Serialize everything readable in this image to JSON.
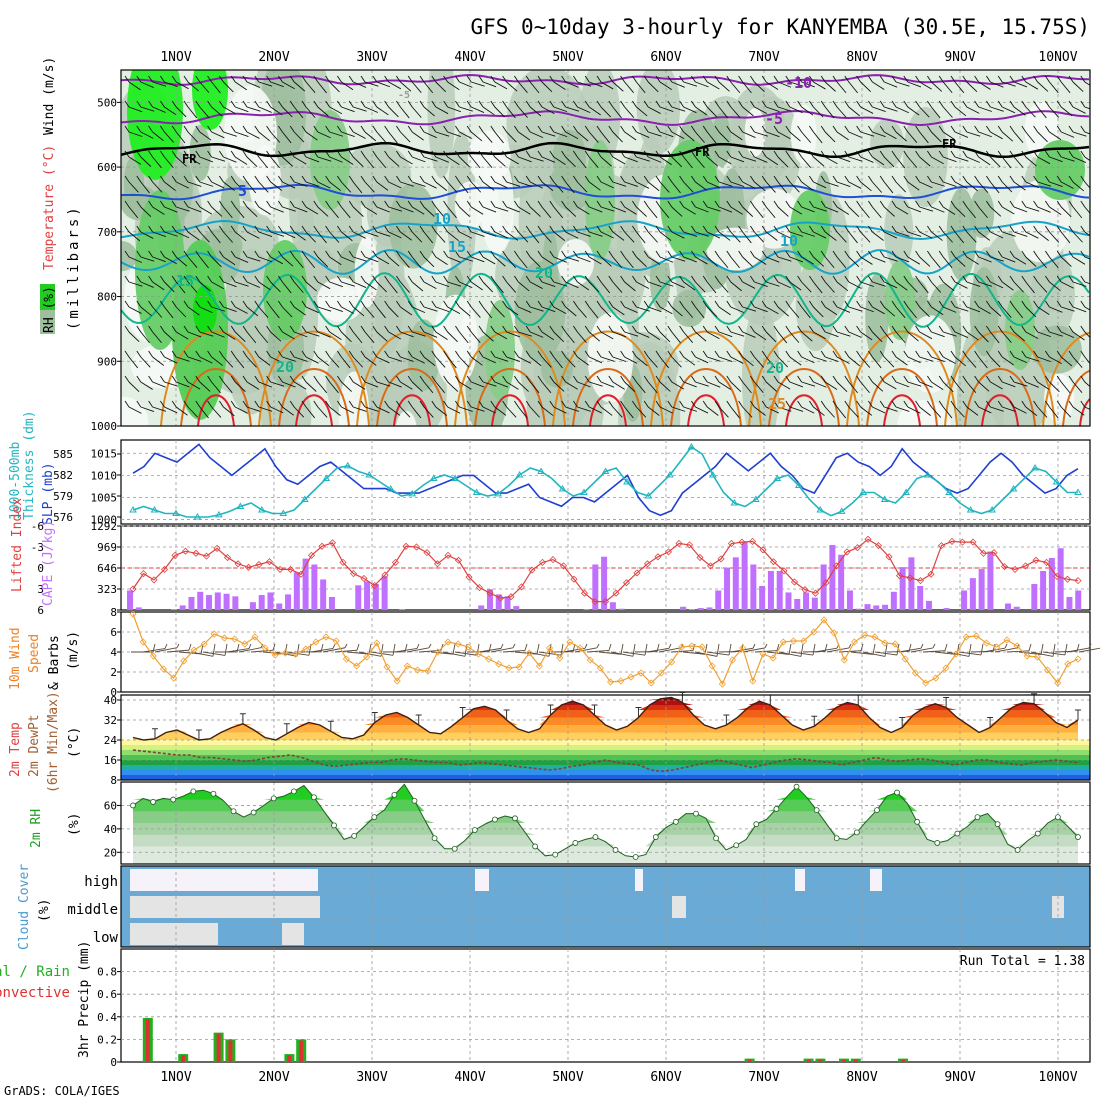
{
  "title": "GFS 0~10day 3-hourly for KANYEMBA (30.5E, 15.75S)",
  "credit": "GrADS: COLA/IGES",
  "colors": {
    "rh_green": "#22cc22",
    "rh_light": "#cfe0cf",
    "rh_mid": "#9fbf9f",
    "temp_purple": "#8a20b0",
    "temp_blue": "#1f4fd6",
    "temp_cyan": "#17a3c9",
    "temp_teal": "#12b58c",
    "temp_orange": "#e08a1e",
    "temp_red": "#e0202a",
    "slp": "#1f3fd0",
    "thickness": "#22b5c0",
    "li_red": "#e04040",
    "cape": "#c070ff",
    "wind_orange": "#f0a030",
    "rh2m": "#20c020",
    "cloud": "#6aaad6",
    "rain": "#e03030",
    "total": "#20b020"
  },
  "chart_data": [
    {
      "type": "heatmap",
      "name": "Upper-air cross section",
      "x_labels": [
        "1NOV",
        "2NOV",
        "3NOV",
        "4NOV",
        "5NOV",
        "6NOV",
        "7NOV",
        "8NOV",
        "9NOV",
        "10NOV"
      ],
      "ylabel": "(millibars)",
      "yticks": [
        500,
        600,
        700,
        800,
        900,
        1000
      ],
      "ylim": [
        450,
        1000
      ],
      "legend": {
        "rh": "RH (%)",
        "temp": "Temperature (°C)",
        "wind": "Wind (m/s)"
      },
      "contour_labels": [
        "-10",
        "-5",
        "FR",
        "FR",
        "FR",
        "-5",
        "5",
        "10",
        "15",
        "15",
        "20",
        "20",
        "25",
        "10",
        "20"
      ]
    },
    {
      "type": "line",
      "name": "SLP and thickness",
      "ylabel_left": [
        "1000-500mb",
        "Thickness (dm)"
      ],
      "ylabel_right": "SLP (mb)",
      "left_ticks": [
        "585",
        "582",
        "579",
        "576"
      ],
      "right_ticks": [
        "1015",
        "1010",
        "1005",
        "1000"
      ],
      "left_lim": [
        575,
        587
      ],
      "right_lim": [
        999,
        1018
      ],
      "series": [
        {
          "name": "SLP (mb)",
          "axis": "right",
          "values": [
            1010.5,
            1012,
            1015,
            1014,
            1013,
            1015,
            1017,
            1014,
            1012,
            1010,
            1012,
            1014,
            1016,
            1012,
            1009,
            1008,
            1010,
            1012,
            1013,
            1011,
            1009,
            1007,
            1007,
            1007,
            1006,
            1006,
            1006,
            1007,
            1008,
            1009,
            1010,
            1010,
            1008,
            1006,
            1006,
            1007,
            1008,
            1005,
            1004,
            1003,
            1005,
            1005,
            1004,
            1006,
            1008,
            1010,
            1005,
            1002,
            1001,
            1002,
            1006,
            1008,
            1010,
            1012,
            1015,
            1013,
            1011,
            1013,
            1015,
            1012,
            1010,
            1007,
            1006,
            1010,
            1014,
            1015,
            1013,
            1012,
            1010,
            1012,
            1016,
            1013,
            1011,
            1009,
            1007,
            1006,
            1007,
            1010,
            1013,
            1015,
            1013,
            1010,
            1008,
            1006,
            1007,
            1010,
            1011.5
          ]
        },
        {
          "name": "Thickness (dm)",
          "axis": "left",
          "values": [
            577,
            577.5,
            577,
            576.5,
            576.5,
            576,
            576,
            576,
            576.3,
            576.8,
            577.5,
            578,
            577,
            576.5,
            576.5,
            577,
            578.5,
            580,
            581.5,
            583,
            583.3,
            582.5,
            582,
            581,
            580,
            579,
            579.3,
            580.5,
            581.5,
            582,
            581.5,
            580.5,
            579.5,
            579,
            579.3,
            580.5,
            582,
            583,
            582.5,
            581.5,
            580,
            579,
            579.5,
            581,
            582.5,
            583,
            581,
            579.5,
            579,
            580.5,
            582,
            584,
            586,
            585,
            582,
            579.5,
            578,
            577.5,
            578.5,
            580,
            581.5,
            582,
            580.5,
            578.5,
            577,
            576.2,
            576.8,
            578,
            579.5,
            579.5,
            578.5,
            578,
            579.5,
            581.5,
            582,
            581,
            579.5,
            578,
            577,
            576.5,
            577,
            578.5,
            580,
            581.5,
            583,
            582.5,
            581,
            579.5,
            579.5
          ]
        }
      ]
    },
    {
      "type": "bar",
      "name": "Lifted Index and CAPE",
      "ylabel_left": "Lifted Index",
      "ylabel_right": "CAPE (J/kg)",
      "left_ticks": [
        "-6",
        "-3",
        "0",
        "3",
        "6"
      ],
      "right_ticks": [
        "1292",
        "969",
        "646",
        "323"
      ],
      "left_lim": [
        -6,
        6
      ],
      "right_lim": [
        0,
        1292
      ],
      "series": [
        {
          "name": "CAPE (J/kg)",
          "values": [
            300,
            40,
            0,
            0,
            0,
            10,
            70,
            200,
            280,
            230,
            270,
            250,
            210,
            0,
            120,
            230,
            270,
            100,
            240,
            580,
            790,
            700,
            470,
            200,
            0,
            0,
            380,
            440,
            400,
            520,
            0,
            10,
            0,
            0,
            0,
            0,
            0,
            0,
            0,
            0,
            70,
            320,
            240,
            210,
            60,
            0,
            0,
            0,
            0,
            0,
            0,
            0,
            10,
            700,
            820,
            120,
            20,
            0,
            0,
            0,
            0,
            0,
            0,
            50,
            10,
            30,
            40,
            300,
            650,
            810,
            1050,
            700,
            370,
            600,
            600,
            270,
            170,
            270,
            190,
            700,
            1000,
            850,
            300,
            20,
            90,
            70,
            80,
            280,
            660,
            810,
            370,
            140,
            0,
            30,
            0,
            300,
            490,
            630,
            900,
            0,
            100,
            50,
            0,
            400,
            600,
            800,
            950,
            200,
            300
          ]
        },
        {
          "name": "Lifted Index",
          "values": [
            3,
            0.8,
            1.7,
            0.2,
            -1.8,
            -2.4,
            -2.1,
            -1.7,
            -2.8,
            -1.5,
            -0.6,
            -0.1,
            -0.5,
            -0.9,
            0.2,
            0.2,
            0.9,
            -1.8,
            -3.1,
            -3.6,
            -0.8,
            0.8,
            1.5,
            2.5,
            1,
            -0.8,
            -3.1,
            -3.0,
            -2.2,
            -0.6,
            -1.8,
            -1.1,
            1.3,
            2.8,
            3.6,
            4.3,
            4.1,
            2.7,
            0.3,
            -0.8,
            -1.2,
            -0.3,
            1.6,
            3.6,
            4.8,
            4.8,
            3.6,
            2.1,
            0.7,
            -0.6,
            -1.6,
            -2.3,
            -3.5,
            -3.3,
            -1.5,
            -0.3,
            -1.3,
            -3.5,
            -3.7,
            -3.8,
            -2.6,
            -0.9,
            0.4,
            2.0,
            3.1,
            3.6,
            2.1,
            -0.3,
            -2.3,
            -2.9,
            -4.1,
            -3.2,
            -1.6,
            1.1,
            1.4,
            1.8,
            0.9,
            -3.2,
            -3.8,
            -3.7,
            -3.7,
            -2.1,
            -2.2,
            -0.2,
            0.2,
            -0.3,
            -1.1,
            -0.8,
            1.2,
            1.6,
            1.8
          ]
        }
      ]
    },
    {
      "type": "line",
      "name": "10m wind speed and barbs",
      "ylabel": [
        "10m Wind",
        "Speed",
        "& Barbs",
        "(m/s)"
      ],
      "yticks": [
        "8",
        "6",
        "4",
        "2",
        "0"
      ],
      "ylim": [
        0,
        8
      ],
      "series": [
        {
          "name": "10m Wind Speed",
          "values": [
            7.8,
            5,
            3.6,
            2.3,
            1.4,
            3.1,
            4.2,
            4.8,
            5.8,
            5.4,
            5.3,
            4.8,
            5.5,
            4.4,
            3.7,
            3.9,
            3.8,
            4.3,
            5.0,
            5.5,
            5.1,
            3.3,
            2.6,
            3.5,
            4.9,
            2.5,
            1.1,
            2.6,
            2.2,
            2.1,
            4.0,
            5.0,
            4.8,
            4.5,
            3.8,
            3.3,
            2.8,
            2.4,
            2.5,
            3.9,
            2.6,
            4.4,
            3.4,
            5.0,
            4.4,
            3.2,
            2.4,
            1.0,
            1.1,
            1.5,
            1.9,
            0.9,
            1.9,
            3.0,
            4.5,
            4.6,
            4.5,
            2.6,
            0.8,
            3.2,
            4.4,
            1.1,
            3.8,
            3.4,
            5.0,
            5.1,
            5.1,
            6.0,
            7.2,
            5.9,
            3.2,
            5.0,
            5.7,
            5.5,
            4.9,
            4.8,
            3.3,
            1.9,
            0.9,
            1.4,
            2.4,
            3.8,
            5.5,
            5.6,
            4.9,
            4.5,
            5.2,
            4.6,
            3.6,
            3.5,
            2.2,
            0.9,
            2.8,
            3.3
          ]
        }
      ]
    },
    {
      "type": "area",
      "name": "2m Temperature and Dewpoint",
      "ylabel": [
        "2m Temp",
        "2m DewPt",
        "(6hr Min/Max)",
        "(°C)"
      ],
      "yticks": [
        "40",
        "32",
        "24",
        "16",
        "8"
      ],
      "ylim": [
        8,
        42
      ],
      "series": [
        {
          "name": "2m Temp",
          "values": [
            25,
            24,
            24.5,
            27,
            28,
            26,
            24,
            24.5,
            27,
            29,
            30.5,
            28,
            25,
            24,
            26.5,
            29,
            31,
            30,
            27.5,
            25,
            24.5,
            26,
            31,
            34,
            35,
            33,
            30,
            27,
            26.5,
            29.5,
            33,
            36.5,
            37.5,
            36,
            32,
            28.5,
            27,
            28.5,
            34,
            38,
            39.5,
            38,
            34,
            30,
            28,
            29.5,
            33,
            38,
            40.5,
            41,
            39,
            34,
            30,
            28.5,
            30,
            33,
            37,
            39.5,
            38,
            34,
            30,
            28,
            29.5,
            33,
            37,
            39,
            38,
            33,
            29,
            27,
            29,
            34,
            37,
            38.5,
            37,
            33,
            30,
            27,
            29,
            33,
            37,
            39,
            38.5,
            35,
            31,
            29,
            32
          ]
        },
        {
          "name": "2m DewPt",
          "values": [
            20,
            19.5,
            19,
            18.5,
            18,
            18,
            17,
            17,
            16.5,
            16,
            15.5,
            16,
            17,
            17.5,
            18,
            17,
            15.5,
            14,
            13.5,
            14,
            14.5,
            15,
            15,
            16,
            16.5,
            16,
            15.5,
            15,
            15,
            14,
            14.5,
            15,
            14.5,
            14,
            13.5,
            13,
            12.5,
            12,
            12.5,
            13.5,
            14,
            15,
            16,
            15,
            14.5,
            14,
            12,
            11.5,
            12,
            13,
            14,
            15,
            16,
            15,
            14,
            13,
            14,
            15,
            16,
            16.5,
            16,
            15.5,
            15,
            14,
            15,
            16,
            17,
            16,
            15.5,
            16,
            16.5,
            16,
            15,
            14,
            15,
            16,
            16,
            15,
            14.5,
            14,
            15,
            15.5,
            16,
            15.5,
            15
          ]
        }
      ]
    },
    {
      "type": "area",
      "name": "2m RH",
      "ylabel": [
        "2m RH",
        "(%)"
      ],
      "yticks": [
        "60",
        "40",
        "20"
      ],
      "ylim": [
        10,
        80
      ],
      "series": [
        {
          "name": "2m RH",
          "values": [
            60,
            66,
            63,
            66,
            65,
            68,
            72,
            73,
            70,
            64,
            55,
            50,
            54,
            60,
            66,
            68,
            72,
            77,
            67,
            55,
            43,
            31,
            34,
            42,
            50,
            56,
            69,
            78,
            64,
            48,
            32,
            23,
            23,
            30,
            39,
            44,
            48,
            51,
            49,
            37,
            25,
            17,
            18,
            23,
            28,
            31,
            33,
            29,
            22,
            17,
            16,
            18,
            33,
            41,
            46,
            53,
            53,
            49,
            32,
            22,
            26,
            31,
            44,
            48,
            57,
            67,
            76,
            67,
            56,
            44,
            32,
            31,
            37,
            47,
            56,
            68,
            71,
            62,
            46,
            31,
            28,
            30,
            36,
            42,
            50,
            53,
            44,
            27,
            22,
            30,
            36,
            45,
            50,
            42,
            33
          ]
        }
      ]
    },
    {
      "type": "heatmap",
      "name": "Cloud Cover",
      "ylabel": [
        "Cloud Cover",
        "(%)"
      ],
      "rows": [
        "high",
        "middle",
        "low"
      ]
    },
    {
      "type": "bar",
      "name": "3hr Precipitation",
      "ylabel": [
        "Total / Rain",
        "Convective",
        "3hr Precip (mm)"
      ],
      "yticks": [
        "0.8",
        "0.6",
        "0.4",
        "0.2",
        "0"
      ],
      "ylim": [
        0,
        1.0
      ],
      "run_total": "Run Total = 1.38",
      "series": [
        {
          "name": "Total",
          "values": [
            0.39,
            0.07,
            0.26,
            0.2,
            0.07,
            0.2,
            0.03,
            0.03,
            0.03,
            0.03,
            0.03,
            0.03
          ]
        },
        {
          "name": "Convective",
          "values": [
            0.38,
            0.06,
            0.25,
            0.19,
            0.06,
            0.19,
            0.02,
            0.02,
            0.02,
            0.02,
            0.02,
            0.02
          ]
        },
        {
          "name": "precip_index",
          "values": [
            1,
            4,
            7,
            8,
            13,
            14,
            52,
            57,
            58,
            60,
            61,
            65
          ]
        }
      ]
    }
  ]
}
